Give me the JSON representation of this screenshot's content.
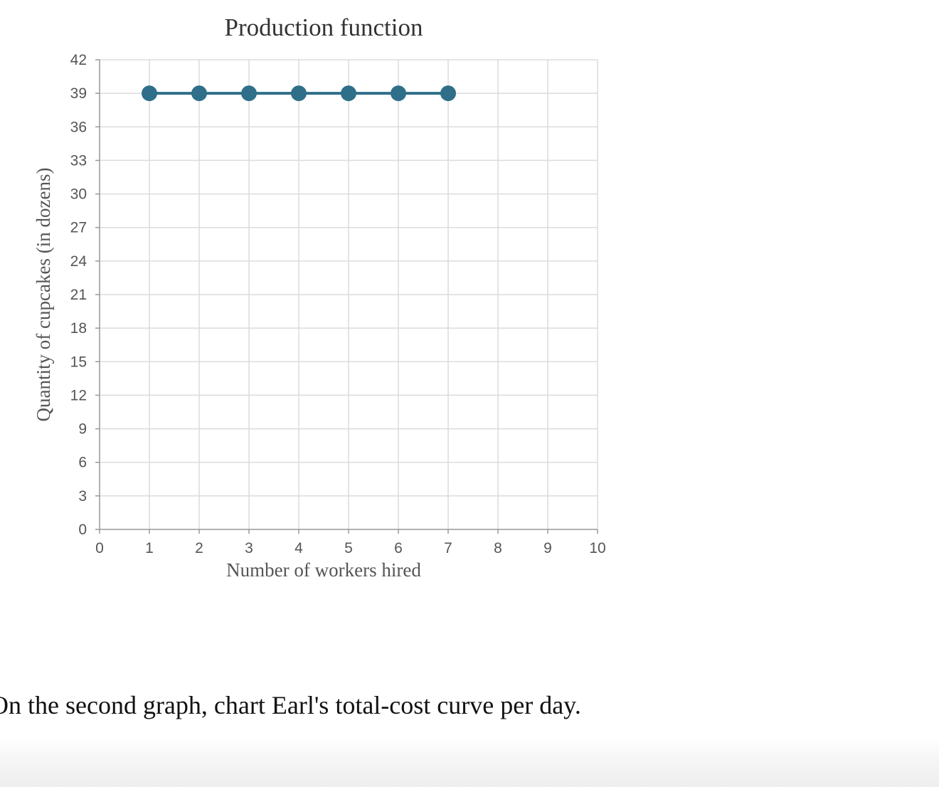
{
  "chart_data": {
    "type": "line",
    "title": "Production function",
    "xlabel": "Number of workers hired",
    "ylabel": "Quantity of cupcakes (in dozens)",
    "xlim": [
      0,
      10
    ],
    "ylim": [
      0,
      42
    ],
    "x_ticks": [
      0,
      1,
      2,
      3,
      4,
      5,
      6,
      7,
      8,
      9,
      10
    ],
    "y_ticks": [
      0,
      3,
      6,
      9,
      12,
      15,
      18,
      21,
      24,
      27,
      30,
      33,
      36,
      39,
      42
    ],
    "grid": true,
    "series": [
      {
        "x": [
          1,
          2,
          3,
          4,
          5,
          6,
          7
        ],
        "y": [
          39,
          39,
          39,
          39,
          39,
          39,
          39
        ],
        "color": "#2f6f89"
      }
    ]
  },
  "prompt": {
    "text": "On the second graph, chart Earl's total-cost curve per day."
  }
}
